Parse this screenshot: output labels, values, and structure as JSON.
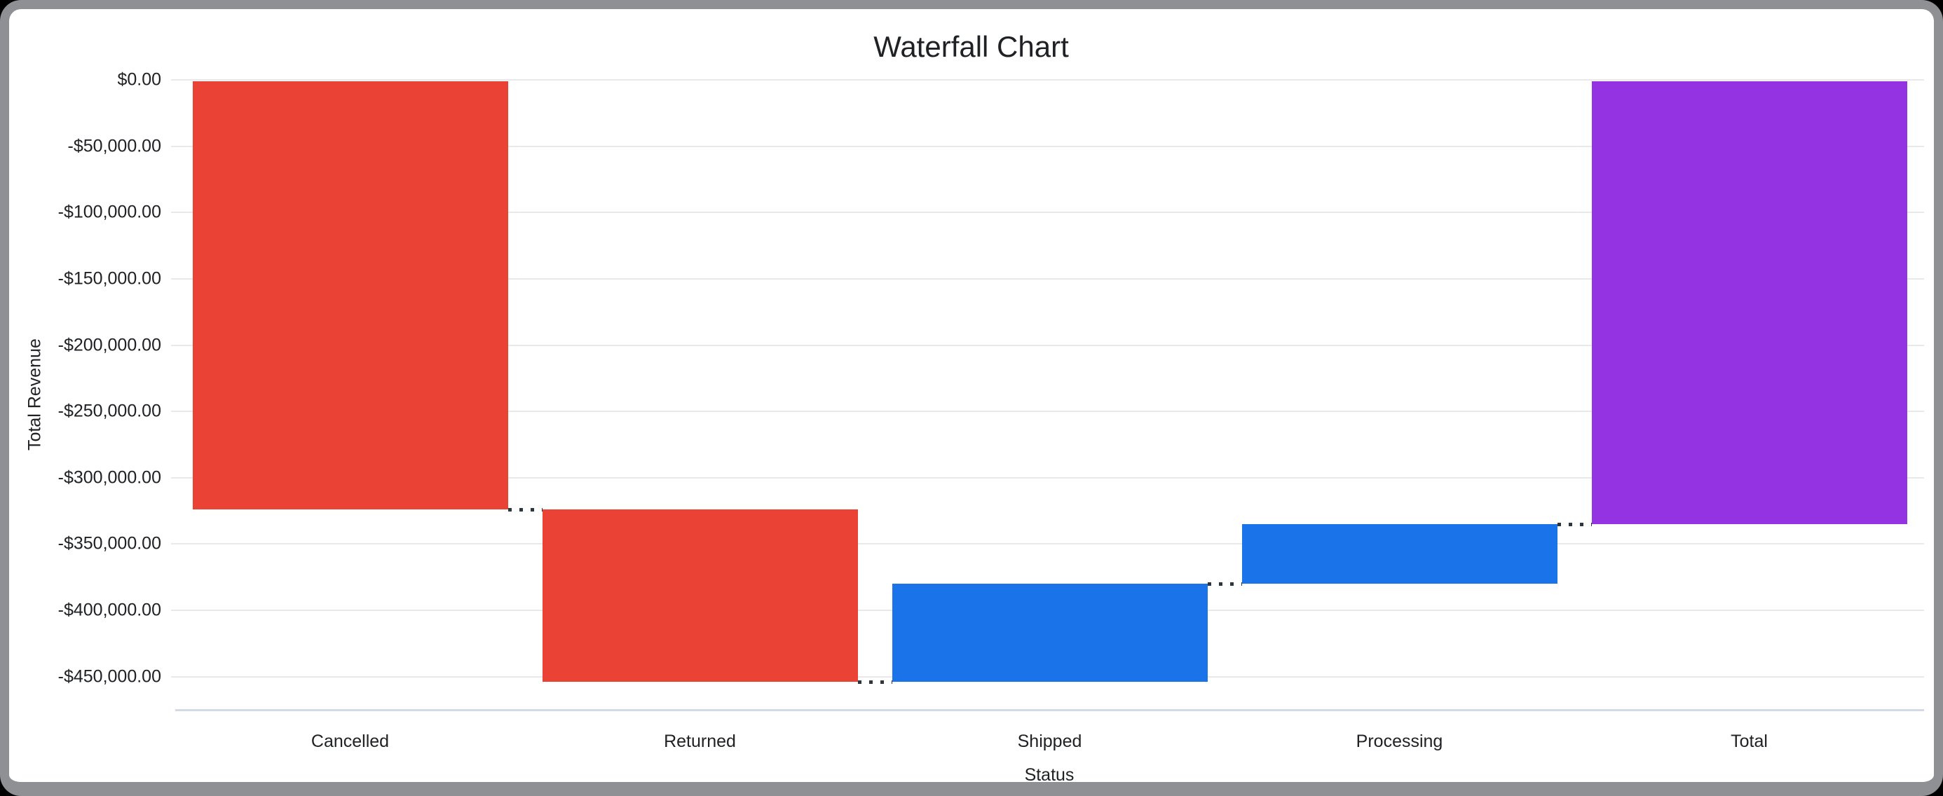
{
  "window": {
    "frame_color": "#8e9094",
    "background_color": "#000000",
    "card_color": "#ffffff"
  },
  "chart_data": {
    "type": "waterfall",
    "title": "Waterfall Chart",
    "xlabel": "Status",
    "ylabel": "Total Revenue",
    "categories": [
      "Cancelled",
      "Returned",
      "Shipped",
      "Processing",
      "Total"
    ],
    "bars": [
      {
        "label": "Cancelled",
        "value": -324000,
        "from": 0,
        "to": -324000,
        "role": "decrease",
        "color": "#EA4335"
      },
      {
        "label": "Returned",
        "value": -130000,
        "from": -324000,
        "to": -454000,
        "role": "decrease",
        "color": "#EA4335"
      },
      {
        "label": "Shipped",
        "value": 74000,
        "from": -454000,
        "to": -380000,
        "role": "increase",
        "color": "#1A73E8"
      },
      {
        "label": "Processing",
        "value": 45000,
        "from": -380000,
        "to": -335000,
        "role": "increase",
        "color": "#1A73E8"
      },
      {
        "label": "Total",
        "value": -335000,
        "from": 0,
        "to": -335000,
        "role": "total",
        "color": "#9333E2"
      }
    ],
    "y_ticks": [
      {
        "value": 0,
        "label": "$0.00"
      },
      {
        "value": -50000,
        "label": "-$50,000.00"
      },
      {
        "value": -100000,
        "label": "-$100,000.00"
      },
      {
        "value": -150000,
        "label": "-$150,000.00"
      },
      {
        "value": -200000,
        "label": "-$200,000.00"
      },
      {
        "value": -250000,
        "label": "-$250,000.00"
      },
      {
        "value": -300000,
        "label": "-$300,000.00"
      },
      {
        "value": -350000,
        "label": "-$350,000.00"
      },
      {
        "value": -400000,
        "label": "-$400,000.00"
      },
      {
        "value": -450000,
        "label": "-$450,000.00"
      }
    ],
    "y_domain": [
      0,
      -475000
    ],
    "grid": true,
    "legend": "none",
    "colors": {
      "decrease": "#EA4335",
      "increase": "#1A73E8",
      "total": "#9333E2",
      "grid": "#e9e9e9",
      "axis_line": "#d3dae6",
      "connector": "#30363d",
      "text": "#202124"
    }
  }
}
